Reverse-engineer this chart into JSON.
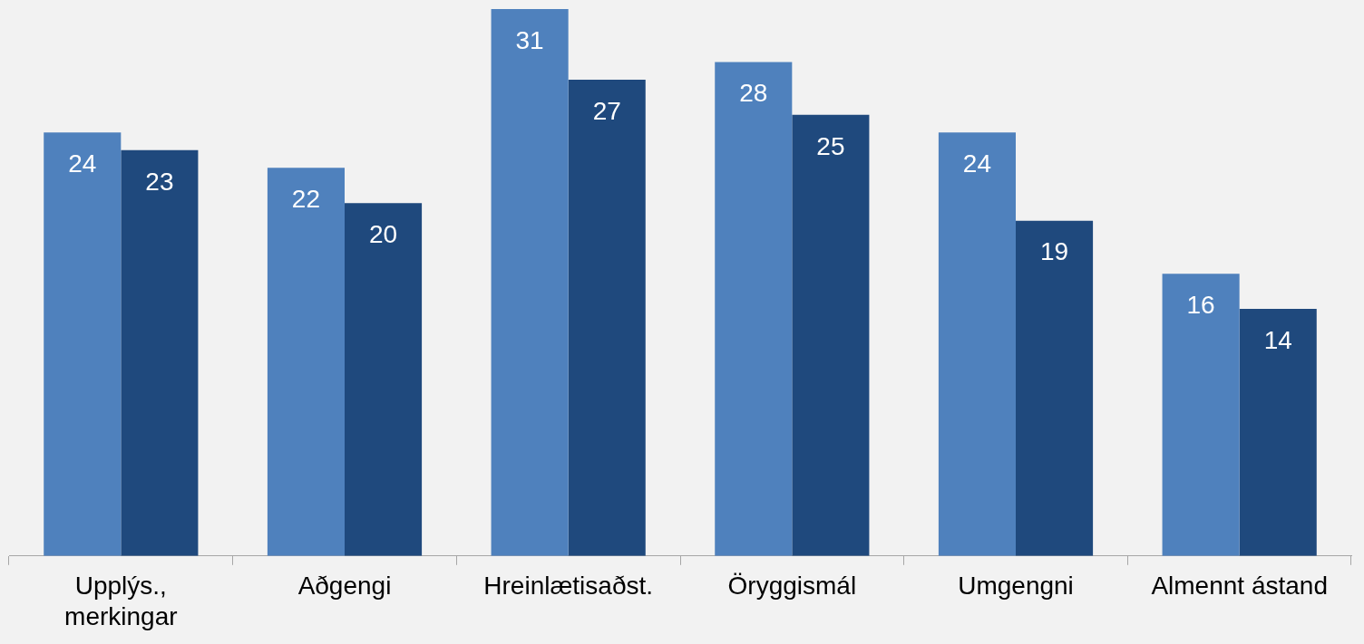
{
  "chart_data": {
    "type": "bar",
    "categories": [
      "Upplýs., merkingar",
      "Aðgengi",
      "Hreinlætisaðst.",
      "Öryggismál",
      "Umgengni",
      "Almennt ástand"
    ],
    "series": [
      {
        "color": "#4f81bd",
        "values": [
          24,
          22,
          31,
          28,
          24,
          16
        ]
      },
      {
        "color": "#1f497d",
        "values": [
          23,
          20,
          27,
          25,
          19,
          14
        ]
      }
    ],
    "data_labels": true,
    "grid": false,
    "legend": false
  }
}
